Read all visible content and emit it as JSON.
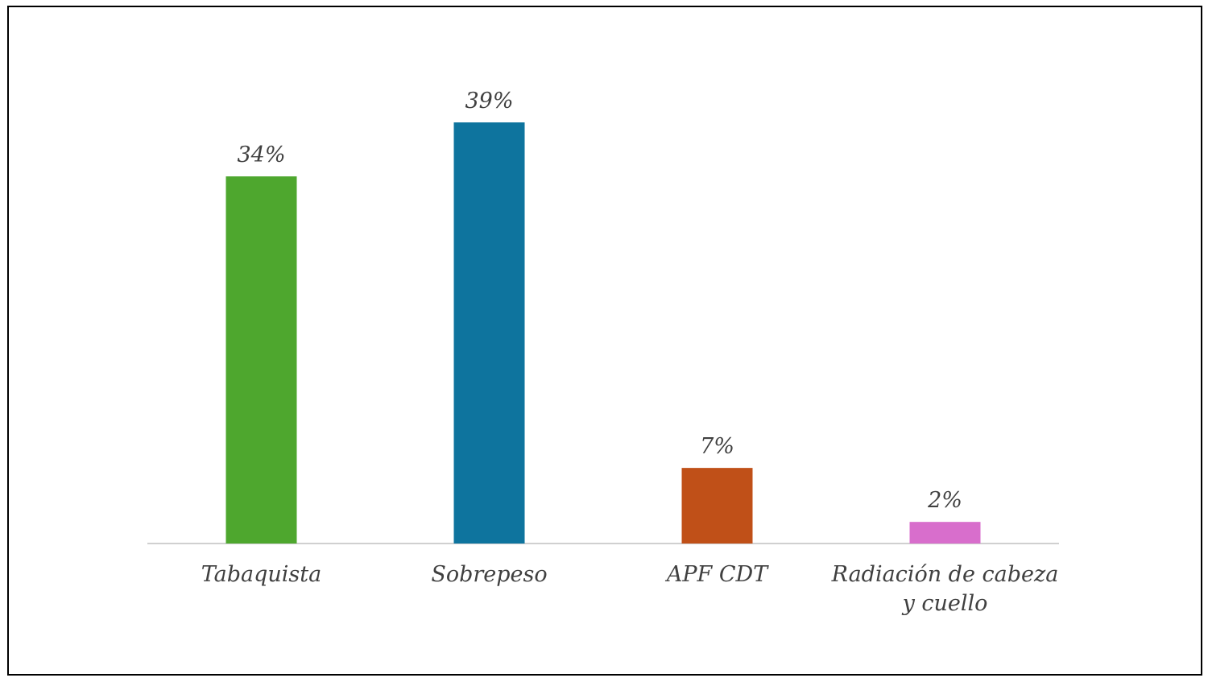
{
  "chart_data": {
    "type": "bar",
    "categories": [
      "Tabaquista",
      "Sobrepeso",
      "APF CDT",
      "Radiación de cabeza y cuello"
    ],
    "values": [
      34,
      39,
      7,
      2
    ],
    "value_labels": [
      "34%",
      "39%",
      "7%",
      "2%"
    ],
    "colors": [
      "#4ea72e",
      "#0e749e",
      "#c05018",
      "#d86ecc"
    ]
  }
}
